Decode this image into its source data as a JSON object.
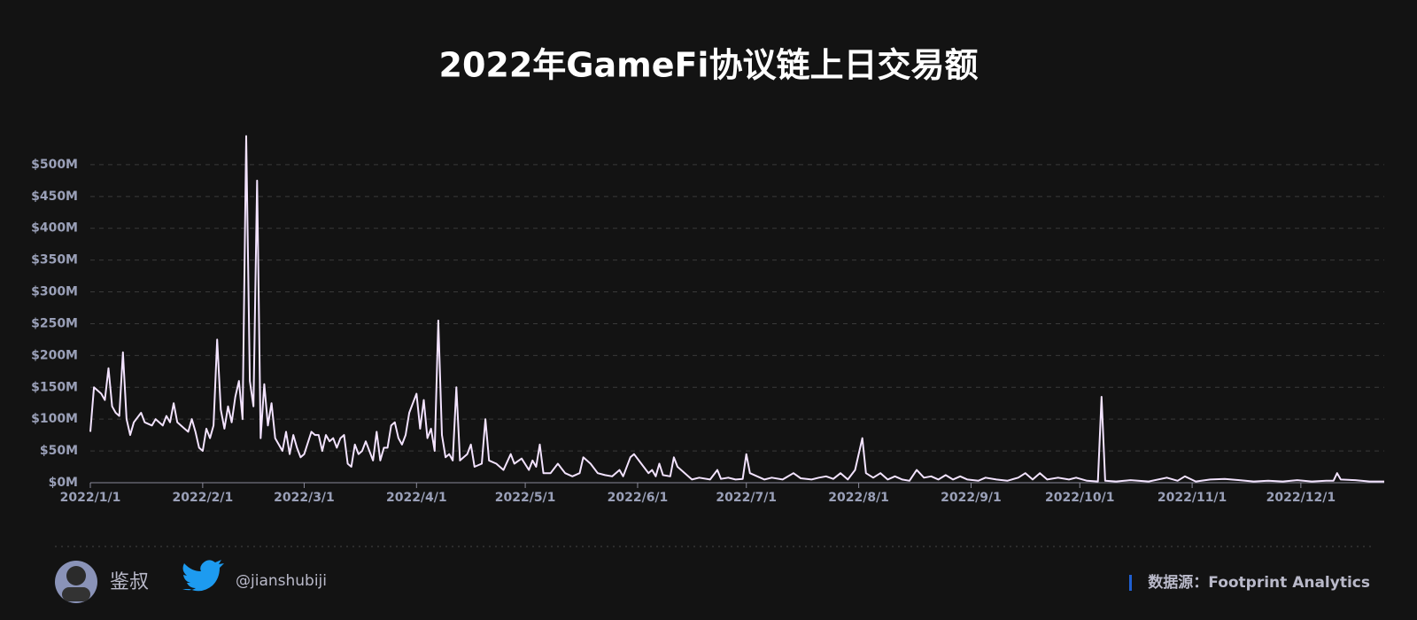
{
  "chart_data": {
    "type": "line",
    "title": "2022年GameFi协议链上日交易额",
    "color": "#f3e3ff",
    "x": [
      "2022/1/1",
      "2022/1/2",
      "2022/1/4",
      "2022/1/5",
      "2022/1/6",
      "2022/1/7",
      "2022/1/8",
      "2022/1/9",
      "2022/1/10",
      "2022/1/11",
      "2022/1/12",
      "2022/1/13",
      "2022/1/15",
      "2022/1/16",
      "2022/1/18",
      "2022/1/19",
      "2022/1/21",
      "2022/1/22",
      "2022/1/23",
      "2022/1/24",
      "2022/1/25",
      "2022/1/27",
      "2022/1/28",
      "2022/1/29",
      "2022/1/30",
      "2022/1/31",
      "2022/2/1",
      "2022/2/2",
      "2022/2/3",
      "2022/2/4",
      "2022/2/5",
      "2022/2/6",
      "2022/2/7",
      "2022/2/8",
      "2022/2/9",
      "2022/2/10",
      "2022/2/11",
      "2022/2/12",
      "2022/2/13",
      "2022/2/14",
      "2022/2/15",
      "2022/2/16",
      "2022/2/17",
      "2022/2/18",
      "2022/2/19",
      "2022/2/20",
      "2022/2/21",
      "2022/2/22",
      "2022/2/23",
      "2022/2/24",
      "2022/2/25",
      "2022/2/26",
      "2022/2/27",
      "2022/2/28",
      "2022/3/1",
      "2022/3/3",
      "2022/3/4",
      "2022/3/5",
      "2022/3/6",
      "2022/3/7",
      "2022/3/8",
      "2022/3/9",
      "2022/3/10",
      "2022/3/11",
      "2022/3/12",
      "2022/3/13",
      "2022/3/14",
      "2022/3/15",
      "2022/3/16",
      "2022/3/17",
      "2022/3/18",
      "2022/3/19",
      "2022/3/20",
      "2022/3/21",
      "2022/3/22",
      "2022/3/23",
      "2022/3/24",
      "2022/3/25",
      "2022/3/26",
      "2022/3/27",
      "2022/3/28",
      "2022/3/29",
      "2022/3/30",
      "2022/3/31",
      "2022/4/1",
      "2022/4/2",
      "2022/4/3",
      "2022/4/4",
      "2022/4/5",
      "2022/4/6",
      "2022/4/7",
      "2022/4/8",
      "2022/4/9",
      "2022/4/10",
      "2022/4/11",
      "2022/4/12",
      "2022/4/13",
      "2022/4/14",
      "2022/4/15",
      "2022/4/16",
      "2022/4/17",
      "2022/4/19",
      "2022/4/20",
      "2022/4/21",
      "2022/4/23",
      "2022/4/25",
      "2022/4/27",
      "2022/4/28",
      "2022/4/30",
      "2022/5/2",
      "2022/5/3",
      "2022/5/4",
      "2022/5/5",
      "2022/5/6",
      "2022/5/8",
      "2022/5/10",
      "2022/5/12",
      "2022/5/14",
      "2022/5/16",
      "2022/5/17",
      "2022/5/19",
      "2022/5/21",
      "2022/5/23",
      "2022/5/25",
      "2022/5/27",
      "2022/5/28",
      "2022/5/30",
      "2022/5/31",
      "2022/6/2",
      "2022/6/4",
      "2022/6/5",
      "2022/6/6",
      "2022/6/7",
      "2022/6/8",
      "2022/6/10",
      "2022/6/11",
      "2022/6/12",
      "2022/6/14",
      "2022/6/16",
      "2022/6/18",
      "2022/6/21",
      "2022/6/23",
      "2022/6/24",
      "2022/6/26",
      "2022/6/28",
      "2022/6/30",
      "2022/7/1",
      "2022/7/2",
      "2022/7/4",
      "2022/7/6",
      "2022/7/8",
      "2022/7/11",
      "2022/7/14",
      "2022/7/16",
      "2022/7/19",
      "2022/7/21",
      "2022/7/23",
      "2022/7/25",
      "2022/7/27",
      "2022/7/29",
      "2022/7/31",
      "2022/8/2",
      "2022/8/3",
      "2022/8/5",
      "2022/8/7",
      "2022/8/9",
      "2022/8/11",
      "2022/8/13",
      "2022/8/15",
      "2022/8/17",
      "2022/8/19",
      "2022/8/21",
      "2022/8/23",
      "2022/8/25",
      "2022/8/27",
      "2022/8/29",
      "2022/8/31",
      "2022/9/3",
      "2022/9/5",
      "2022/9/8",
      "2022/9/11",
      "2022/9/14",
      "2022/9/16",
      "2022/9/18",
      "2022/9/20",
      "2022/9/22",
      "2022/9/25",
      "2022/9/28",
      "2022/9/30",
      "2022/10/3",
      "2022/10/6",
      "2022/10/7",
      "2022/10/8",
      "2022/10/11",
      "2022/10/15",
      "2022/10/20",
      "2022/10/25",
      "2022/10/28",
      "2022/10/30",
      "2022/11/2",
      "2022/11/6",
      "2022/11/10",
      "2022/11/14",
      "2022/11/18",
      "2022/11/22",
      "2022/11/26",
      "2022/11/30",
      "2022/12/4",
      "2022/12/8",
      "2022/12/10",
      "2022/12/11",
      "2022/12/12",
      "2022/12/16",
      "2022/12/20",
      "2022/12/24"
    ],
    "values": [
      80,
      150,
      140,
      130,
      180,
      120,
      110,
      105,
      205,
      100,
      75,
      95,
      110,
      95,
      90,
      100,
      90,
      105,
      95,
      125,
      95,
      85,
      80,
      100,
      80,
      55,
      50,
      85,
      70,
      90,
      225,
      115,
      85,
      120,
      95,
      135,
      160,
      100,
      545,
      160,
      120,
      475,
      70,
      155,
      90,
      125,
      70,
      60,
      50,
      80,
      45,
      75,
      55,
      40,
      45,
      80,
      75,
      75,
      50,
      75,
      65,
      70,
      55,
      70,
      75,
      30,
      25,
      60,
      45,
      50,
      65,
      50,
      35,
      80,
      35,
      55,
      55,
      90,
      95,
      70,
      60,
      75,
      110,
      125,
      140,
      85,
      130,
      70,
      85,
      50,
      255,
      75,
      40,
      45,
      35,
      150,
      35,
      40,
      45,
      60,
      25,
      30,
      100,
      35,
      30,
      20,
      45,
      30,
      38,
      20,
      35,
      25,
      60,
      15,
      15,
      30,
      15,
      10,
      15,
      40,
      30,
      15,
      12,
      10,
      20,
      10,
      40,
      45,
      30,
      15,
      20,
      10,
      30,
      12,
      10,
      40,
      25,
      15,
      5,
      8,
      5,
      20,
      6,
      8,
      5,
      6,
      45,
      15,
      10,
      5,
      8,
      5,
      15,
      7,
      5,
      8,
      10,
      6,
      15,
      5,
      20,
      70,
      15,
      8,
      15,
      5,
      10,
      5,
      3,
      20,
      8,
      10,
      5,
      12,
      5,
      10,
      5,
      3,
      8,
      5,
      3,
      8,
      15,
      5,
      15,
      5,
      8,
      5,
      8,
      3,
      2,
      135,
      3,
      2,
      4,
      2,
      8,
      3,
      10,
      2,
      5,
      6,
      4,
      2,
      3,
      2,
      4,
      2,
      3,
      3,
      15,
      5,
      4,
      2,
      2
    ],
    "xlim": [
      "2022/1/1",
      "2022/12/24"
    ],
    "xticks": [
      "2022/1/1",
      "2022/2/1",
      "2022/3/1",
      "2022/4/1",
      "2022/5/1",
      "2022/6/1",
      "2022/7/1",
      "2022/8/1",
      "2022/9/1",
      "2022/10/1",
      "2022/11/1",
      "2022/12/1"
    ],
    "ylim": [
      0,
      550
    ],
    "yticks": [
      {
        "value": 0,
        "label": "$0M"
      },
      {
        "value": 50,
        "label": "$50M"
      },
      {
        "value": 100,
        "label": "$100M"
      },
      {
        "value": 150,
        "label": "$150M"
      },
      {
        "value": 200,
        "label": "$200M"
      },
      {
        "value": 250,
        "label": "$250M"
      },
      {
        "value": 300,
        "label": "$300M"
      },
      {
        "value": 350,
        "label": "$350M"
      },
      {
        "value": 400,
        "label": "$400M"
      },
      {
        "value": 450,
        "label": "$450M"
      },
      {
        "value": 500,
        "label": "$500M"
      }
    ],
    "grid": true
  },
  "footer": {
    "author": "鉴叔",
    "twitter": "@jianshubiji",
    "source": "数据源：Footprint  Analytics"
  }
}
